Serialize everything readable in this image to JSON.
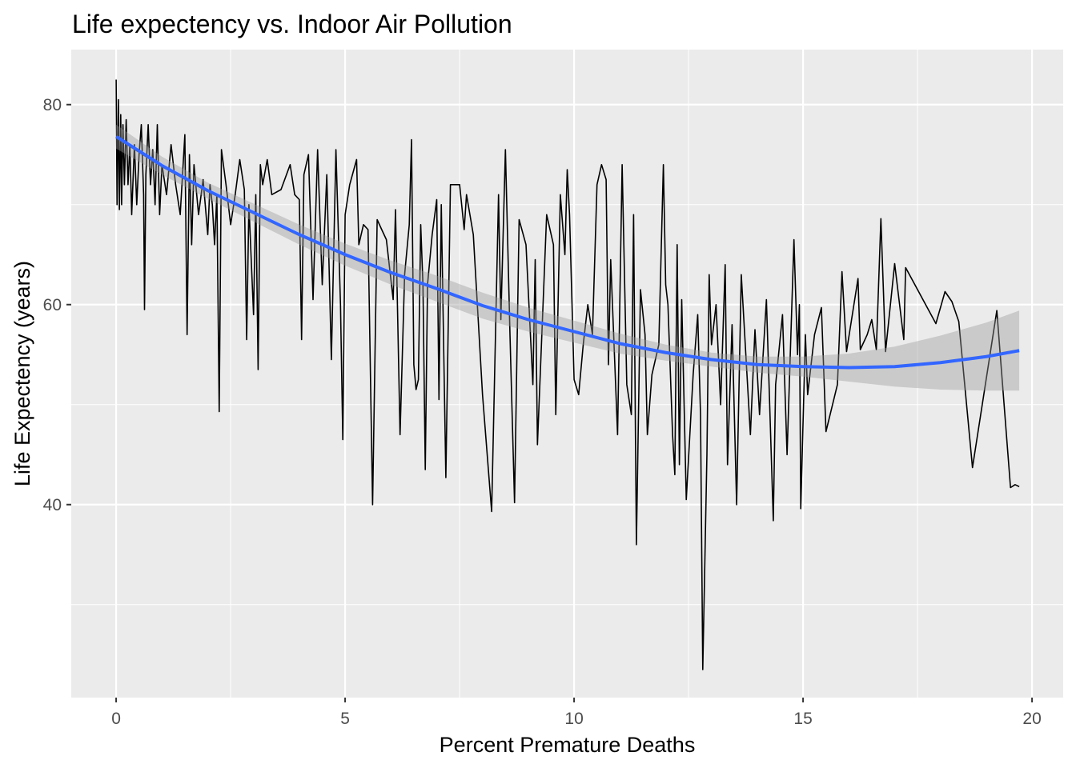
{
  "chart_data": {
    "type": "line",
    "title": "Life expectency vs. Indoor Air Pollution",
    "xlabel": "Percent Premature Deaths",
    "ylabel": "Life Expectency (years)",
    "xlim": [
      -0.98,
      20.68
    ],
    "ylim": [
      20.7,
      85.5
    ],
    "x_ticks": [
      0,
      5,
      10,
      15,
      20
    ],
    "y_ticks": [
      40,
      60,
      80
    ],
    "grid": true,
    "colors": {
      "panel": "#EBEBEB",
      "grid": "#FFFFFF",
      "line": "#000000",
      "smooth": "#3366FF",
      "ribbon": "#999999"
    },
    "series": [
      {
        "type": "line",
        "points": [
          [
            0,
            82.5
          ],
          [
            0.02,
            70
          ],
          [
            0.05,
            80.5
          ],
          [
            0.07,
            69.5
          ],
          [
            0.1,
            79
          ],
          [
            0.12,
            70
          ],
          [
            0.15,
            78
          ],
          [
            0.18,
            72
          ],
          [
            0.22,
            78.5
          ],
          [
            0.26,
            72
          ],
          [
            0.3,
            76
          ],
          [
            0.34,
            69
          ],
          [
            0.4,
            76
          ],
          [
            0.45,
            70
          ],
          [
            0.5,
            75
          ],
          [
            0.55,
            78
          ],
          [
            0.6,
            71
          ],
          [
            0.62,
            59.5
          ],
          [
            0.65,
            73
          ],
          [
            0.7,
            78
          ],
          [
            0.75,
            72
          ],
          [
            0.8,
            75.5
          ],
          [
            0.85,
            70
          ],
          [
            0.9,
            78
          ],
          [
            0.95,
            69
          ],
          [
            1.0,
            74
          ],
          [
            1.1,
            71
          ],
          [
            1.2,
            76
          ],
          [
            1.3,
            72
          ],
          [
            1.4,
            69
          ],
          [
            1.5,
            77
          ],
          [
            1.55,
            57
          ],
          [
            1.6,
            75
          ],
          [
            1.65,
            66
          ],
          [
            1.7,
            74
          ],
          [
            1.8,
            69
          ],
          [
            1.9,
            72.5
          ],
          [
            2.0,
            67
          ],
          [
            2.05,
            72
          ],
          [
            2.1,
            70
          ],
          [
            2.15,
            66
          ],
          [
            2.2,
            71
          ],
          [
            2.25,
            49.3
          ],
          [
            2.3,
            75.5
          ],
          [
            2.4,
            72
          ],
          [
            2.5,
            68
          ],
          [
            2.6,
            71
          ],
          [
            2.7,
            74.5
          ],
          [
            2.8,
            71.5
          ],
          [
            2.85,
            56.5
          ],
          [
            2.9,
            70
          ],
          [
            3.0,
            59
          ],
          [
            3.05,
            71
          ],
          [
            3.1,
            53.5
          ],
          [
            3.15,
            74
          ],
          [
            3.2,
            72
          ],
          [
            3.3,
            74.5
          ],
          [
            3.4,
            71
          ],
          [
            3.6,
            71.5
          ],
          [
            3.8,
            74
          ],
          [
            3.9,
            71
          ],
          [
            4.0,
            70.5
          ],
          [
            4.05,
            56.5
          ],
          [
            4.1,
            73
          ],
          [
            4.2,
            75
          ],
          [
            4.3,
            60.5
          ],
          [
            4.4,
            75.5
          ],
          [
            4.5,
            62
          ],
          [
            4.6,
            73
          ],
          [
            4.7,
            54.5
          ],
          [
            4.8,
            75.5
          ],
          [
            4.9,
            60
          ],
          [
            4.95,
            46.5
          ],
          [
            5.0,
            69
          ],
          [
            5.1,
            72
          ],
          [
            5.25,
            74.5
          ],
          [
            5.3,
            66
          ],
          [
            5.4,
            68
          ],
          [
            5.5,
            67.5
          ],
          [
            5.6,
            40
          ],
          [
            5.7,
            68.5
          ],
          [
            5.8,
            67.5
          ],
          [
            5.9,
            66.5
          ],
          [
            6.05,
            60.5
          ],
          [
            6.1,
            69.5
          ],
          [
            6.2,
            47
          ],
          [
            6.3,
            63
          ],
          [
            6.4,
            68
          ],
          [
            6.45,
            76.5
          ],
          [
            6.5,
            54
          ],
          [
            6.55,
            51.5
          ],
          [
            6.6,
            52.5
          ],
          [
            6.65,
            68
          ],
          [
            6.7,
            62
          ],
          [
            6.75,
            43.5
          ],
          [
            6.8,
            62
          ],
          [
            6.9,
            67
          ],
          [
            7.0,
            70.5
          ],
          [
            7.05,
            50.5
          ],
          [
            7.1,
            70
          ],
          [
            7.2,
            42.7
          ],
          [
            7.3,
            72
          ],
          [
            7.5,
            72
          ],
          [
            7.6,
            67.5
          ],
          [
            7.65,
            71
          ],
          [
            7.8,
            67
          ],
          [
            8.0,
            51
          ],
          [
            8.2,
            39.3
          ],
          [
            8.35,
            71
          ],
          [
            8.4,
            58.5
          ],
          [
            8.5,
            75.5
          ],
          [
            8.6,
            57
          ],
          [
            8.7,
            40.2
          ],
          [
            8.8,
            68.5
          ],
          [
            8.95,
            66
          ],
          [
            9.1,
            52
          ],
          [
            9.15,
            64.5
          ],
          [
            9.2,
            46
          ],
          [
            9.4,
            69
          ],
          [
            9.55,
            66
          ],
          [
            9.6,
            49
          ],
          [
            9.7,
            71
          ],
          [
            9.8,
            65
          ],
          [
            9.85,
            73.5
          ],
          [
            9.9,
            69
          ],
          [
            10.0,
            52.5
          ],
          [
            10.1,
            51
          ],
          [
            10.2,
            56
          ],
          [
            10.3,
            60
          ],
          [
            10.4,
            57
          ],
          [
            10.5,
            72
          ],
          [
            10.6,
            74
          ],
          [
            10.7,
            72.5
          ],
          [
            10.75,
            54
          ],
          [
            10.8,
            64.5
          ],
          [
            10.95,
            47
          ],
          [
            11.05,
            74
          ],
          [
            11.15,
            52
          ],
          [
            11.25,
            49
          ],
          [
            11.3,
            69
          ],
          [
            11.36,
            36
          ],
          [
            11.45,
            61.5
          ],
          [
            11.55,
            57
          ],
          [
            11.6,
            47
          ],
          [
            11.7,
            53
          ],
          [
            11.85,
            56
          ],
          [
            11.95,
            74
          ],
          [
            12.0,
            62
          ],
          [
            12.05,
            60
          ],
          [
            12.15,
            47
          ],
          [
            12.2,
            43
          ],
          [
            12.25,
            66
          ],
          [
            12.3,
            44
          ],
          [
            12.35,
            60.5
          ],
          [
            12.45,
            40.5
          ],
          [
            12.6,
            53
          ],
          [
            12.7,
            59
          ],
          [
            12.76,
            49
          ],
          [
            12.81,
            23.5
          ],
          [
            12.9,
            45
          ],
          [
            12.95,
            63
          ],
          [
            13.0,
            56
          ],
          [
            13.1,
            60
          ],
          [
            13.2,
            50
          ],
          [
            13.3,
            64
          ],
          [
            13.35,
            44
          ],
          [
            13.45,
            58
          ],
          [
            13.55,
            40
          ],
          [
            13.65,
            63
          ],
          [
            13.75,
            55
          ],
          [
            13.85,
            47
          ],
          [
            13.95,
            57.5
          ],
          [
            14.05,
            49
          ],
          [
            14.2,
            60.5
          ],
          [
            14.35,
            38.4
          ],
          [
            14.4,
            52
          ],
          [
            14.55,
            59
          ],
          [
            14.65,
            45
          ],
          [
            14.8,
            66.5
          ],
          [
            14.88,
            55
          ],
          [
            14.92,
            60
          ],
          [
            14.95,
            39.6
          ],
          [
            15.05,
            57
          ],
          [
            15.1,
            51
          ],
          [
            15.25,
            57
          ],
          [
            15.4,
            59.7
          ],
          [
            15.5,
            47.3
          ],
          [
            15.75,
            52
          ],
          [
            15.85,
            63.3
          ],
          [
            15.95,
            55.3
          ],
          [
            16.2,
            62.6
          ],
          [
            16.25,
            55.5
          ],
          [
            16.4,
            57
          ],
          [
            16.5,
            58.5
          ],
          [
            16.6,
            55.5
          ],
          [
            16.7,
            68.6
          ],
          [
            16.8,
            55.3
          ],
          [
            17.0,
            64.1
          ],
          [
            17.2,
            56.5
          ],
          [
            17.24,
            63.7
          ],
          [
            17.9,
            58.1
          ],
          [
            18.1,
            61.3
          ],
          [
            18.25,
            60.3
          ],
          [
            18.4,
            58.3
          ],
          [
            18.7,
            43.7
          ],
          [
            19.23,
            59.4
          ],
          [
            19.53,
            41.7
          ],
          [
            19.63,
            42
          ],
          [
            19.72,
            41.8
          ]
        ]
      },
      {
        "type": "smooth",
        "x": [
          0,
          1,
          2,
          3,
          4,
          5,
          6,
          7,
          8,
          9,
          10,
          11,
          12,
          13,
          14,
          15,
          16,
          17,
          18,
          19,
          19.72
        ],
        "y": [
          76.8,
          73.9,
          71.4,
          69.2,
          67.0,
          65.0,
          63.2,
          61.6,
          59.9,
          58.5,
          57.3,
          56.1,
          55.2,
          54.5,
          54.0,
          53.8,
          53.7,
          53.8,
          54.2,
          54.8,
          55.4
        ],
        "se_halfwidth": [
          1.2,
          0.9,
          0.8,
          0.9,
          1.0,
          1.1,
          1.2,
          1.3,
          1.3,
          1.2,
          1.1,
          1.0,
          0.8,
          0.7,
          0.8,
          1.0,
          1.4,
          2.0,
          2.7,
          3.4,
          4.0
        ]
      }
    ]
  }
}
